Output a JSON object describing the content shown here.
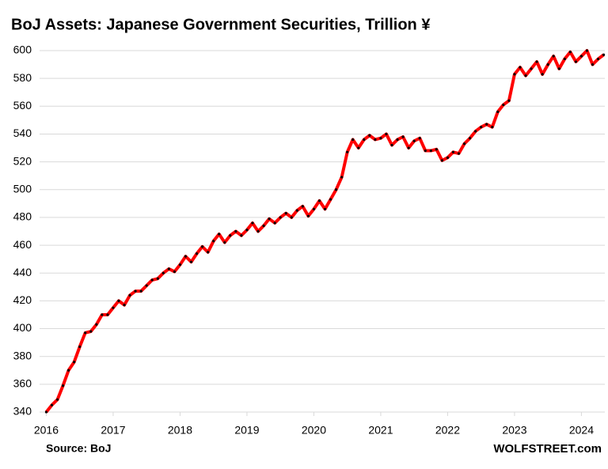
{
  "chart_data": {
    "type": "line",
    "title": "BoJ Assets: Japanese Government Securities, Trillion ¥",
    "source": "Source: BoJ",
    "credit": "WOLFSTREET.com",
    "x": [
      2016.0,
      2016.083,
      2016.167,
      2016.25,
      2016.333,
      2016.417,
      2016.5,
      2016.583,
      2016.667,
      2016.75,
      2016.833,
      2016.917,
      2017.0,
      2017.083,
      2017.167,
      2017.25,
      2017.333,
      2017.417,
      2017.5,
      2017.583,
      2017.667,
      2017.75,
      2017.833,
      2017.917,
      2018.0,
      2018.083,
      2018.167,
      2018.25,
      2018.333,
      2018.417,
      2018.5,
      2018.583,
      2018.667,
      2018.75,
      2018.833,
      2018.917,
      2019.0,
      2019.083,
      2019.167,
      2019.25,
      2019.333,
      2019.417,
      2019.5,
      2019.583,
      2019.667,
      2019.75,
      2019.833,
      2019.917,
      2020.0,
      2020.083,
      2020.167,
      2020.25,
      2020.333,
      2020.417,
      2020.5,
      2020.583,
      2020.667,
      2020.75,
      2020.833,
      2020.917,
      2021.0,
      2021.083,
      2021.167,
      2021.25,
      2021.333,
      2021.417,
      2021.5,
      2021.583,
      2021.667,
      2021.75,
      2021.833,
      2021.917,
      2022.0,
      2022.083,
      2022.167,
      2022.25,
      2022.333,
      2022.417,
      2022.5,
      2022.583,
      2022.667,
      2022.75,
      2022.833,
      2022.917,
      2023.0,
      2023.083,
      2023.167,
      2023.25,
      2023.333,
      2023.417,
      2023.5,
      2023.583,
      2023.667,
      2023.75,
      2023.833,
      2023.917,
      2024.0,
      2024.083,
      2024.167,
      2024.25,
      2024.333
    ],
    "series": [
      {
        "color": "#ff0000",
        "marker_color": "#000000",
        "values": [
          340,
          345,
          349,
          359,
          370,
          376,
          387,
          397,
          398,
          403,
          410,
          410,
          415,
          420,
          417,
          424,
          427,
          427,
          431,
          435,
          436,
          440,
          443,
          441,
          446,
          452,
          448,
          454,
          459,
          455,
          463,
          468,
          462,
          467,
          470,
          467,
          471,
          476,
          470,
          474,
          479,
          476,
          480,
          483,
          480,
          485,
          488,
          481,
          486,
          492,
          486,
          493,
          500,
          509,
          527,
          536,
          530,
          536,
          539,
          536,
          537,
          540,
          532,
          536,
          538,
          530,
          535,
          537,
          528,
          528,
          529,
          521,
          523,
          527,
          526,
          533,
          537,
          542,
          545,
          547,
          545,
          556,
          561,
          564,
          583,
          588,
          582,
          587,
          592,
          583,
          590,
          596,
          587,
          594,
          599,
          592,
          596,
          600,
          590,
          594,
          597
        ]
      }
    ],
    "xlim": [
      2015.9,
      2024.35
    ],
    "xticks": [
      2016,
      2017,
      2018,
      2019,
      2020,
      2021,
      2022,
      2023,
      2024
    ],
    "ylim": [
      340,
      600
    ],
    "yticks": [
      340,
      360,
      380,
      400,
      420,
      440,
      460,
      480,
      500,
      520,
      540,
      560,
      580,
      600
    ],
    "grid": true
  }
}
